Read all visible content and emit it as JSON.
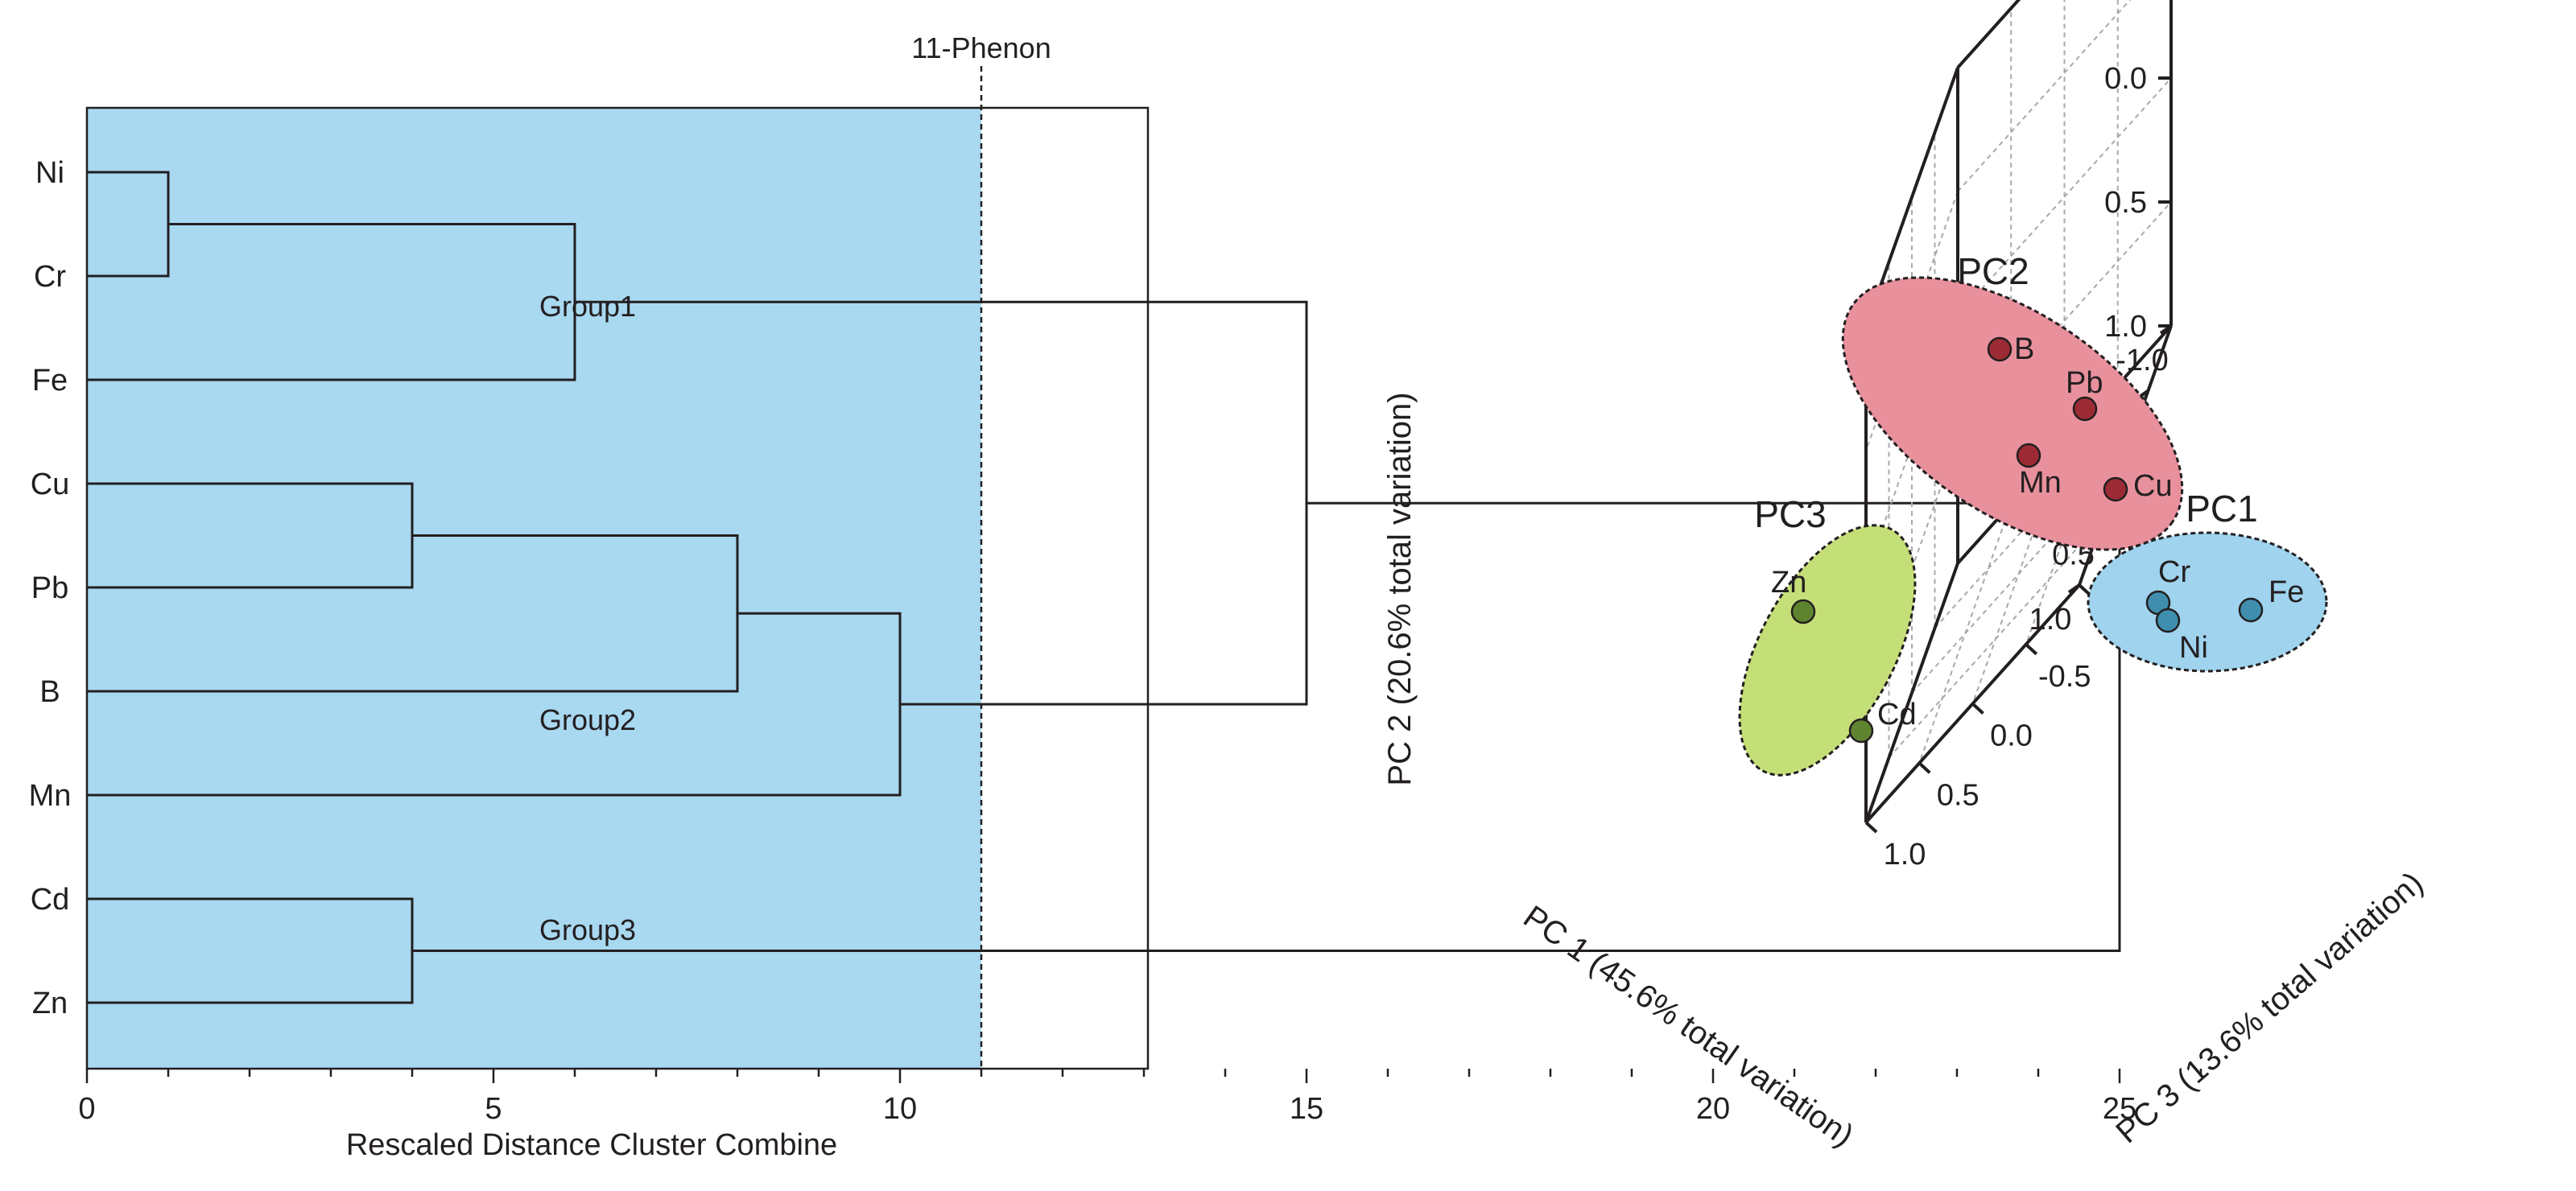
{
  "chart_data": [
    {
      "type": "dendrogram",
      "xlabel": "Rescaled Distance Cluster Combine",
      "xlim": [
        0,
        25
      ],
      "xticks": [
        0,
        5,
        10,
        15,
        20,
        25
      ],
      "leaves": [
        "Ni",
        "Cr",
        "Fe",
        "Cu",
        "Pb",
        "B",
        "Mn",
        "Cd",
        "Zn"
      ],
      "merges": [
        {
          "a": "Ni",
          "b": "Cr",
          "height": 1
        },
        {
          "a": "Cu",
          "b": "Pb",
          "height": 4
        },
        {
          "a": "Cd",
          "b": "Zn",
          "height": 4
        },
        {
          "a": "Ni+Cr",
          "b": "Fe",
          "height": 6
        },
        {
          "a": "Cu+Pb",
          "b": "B",
          "height": 8
        },
        {
          "a": "Cu+Pb+B",
          "b": "Mn",
          "height": 10
        },
        {
          "a": "Group1",
          "b": "Group2",
          "height": 15
        },
        {
          "a": "Group1+Group2",
          "b": "Group3",
          "height": 25
        }
      ],
      "cut_line": {
        "value": 11,
        "label": "11-Phenon"
      },
      "shaded_range": [
        0,
        11
      ],
      "shade_color": "#a9d8f1",
      "groups": [
        {
          "label": "Group1",
          "members": [
            "Ni",
            "Cr",
            "Fe"
          ]
        },
        {
          "label": "Group2",
          "members": [
            "Cu",
            "Pb",
            "B",
            "Mn"
          ]
        },
        {
          "label": "Group3",
          "members": [
            "Cd",
            "Zn"
          ]
        }
      ]
    },
    {
      "type": "scatter3d",
      "xlabel": "PC 1 (45.6% total variation)",
      "ylabel": "PC 2 (20.6% total variation)",
      "zlabel": "PC 3 (13.6% total variation)",
      "axis_range": [
        -1.0,
        1.0
      ],
      "ticks": [
        "-1.0",
        "-0.5",
        "0.0",
        "0.5",
        "1.0"
      ],
      "grid": true,
      "points": [
        {
          "label": "B",
          "group": "PC2"
        },
        {
          "label": "Pb",
          "group": "PC2"
        },
        {
          "label": "Mn",
          "group": "PC2"
        },
        {
          "label": "Cu",
          "group": "PC2"
        },
        {
          "label": "Zn",
          "group": "PC3"
        },
        {
          "label": "Cd",
          "group": "PC3"
        },
        {
          "label": "Cr",
          "group": "PC1"
        },
        {
          "label": "Ni",
          "group": "PC1"
        },
        {
          "label": "Fe",
          "group": "PC1"
        }
      ],
      "clusters": [
        {
          "label": "PC1",
          "color": "#9fd3ee",
          "point_color": "#3f8eae"
        },
        {
          "label": "PC2",
          "color": "#e8919d",
          "point_color": "#9c2b35"
        },
        {
          "label": "PC3",
          "color": "#c5df78",
          "point_color": "#5f8430"
        }
      ]
    }
  ]
}
